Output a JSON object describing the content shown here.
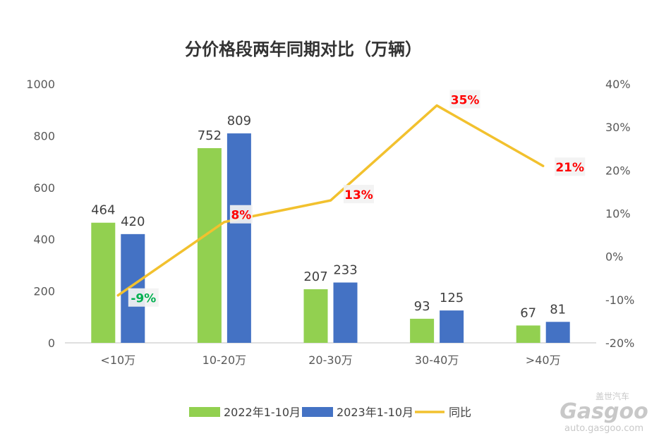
{
  "chart_data": {
    "type": "bar",
    "title": "分价格段两年同期对比（万辆）",
    "categories": [
      "<10万",
      "10-20万",
      "20-30万",
      "30-40万",
      ">40万"
    ],
    "series": [
      {
        "name": "2022年1-10月",
        "values": [
          464,
          752,
          207,
          93,
          67
        ],
        "color": "#92d050"
      },
      {
        "name": "2023年1-10月",
        "values": [
          420,
          809,
          233,
          125,
          81
        ],
        "color": "#4472c4"
      }
    ],
    "line_series": {
      "name": "同比",
      "values": [
        -9,
        8,
        13,
        35,
        21
      ],
      "labels": [
        "-9%",
        "8%",
        "13%",
        "35%",
        "21%"
      ],
      "label_colors": [
        "#00b050",
        "#ff0000",
        "#ff0000",
        "#ff0000",
        "#ff0000"
      ],
      "color": "#f2c12e",
      "axis": "right"
    },
    "y_left": {
      "min": 0,
      "max": 1000,
      "ticks": [
        "0",
        "200",
        "400",
        "600",
        "800",
        "1000"
      ]
    },
    "y_right": {
      "min": -20,
      "max": 40,
      "ticks": [
        "-20%",
        "-10%",
        "0%",
        "10%",
        "20%",
        "30%",
        "40%"
      ]
    },
    "grid": false,
    "legend_position": "bottom"
  },
  "watermark": {
    "brand": "Gasgoo",
    "brand_cn": "盖世汽车",
    "url": "auto.gasgoo.com"
  }
}
